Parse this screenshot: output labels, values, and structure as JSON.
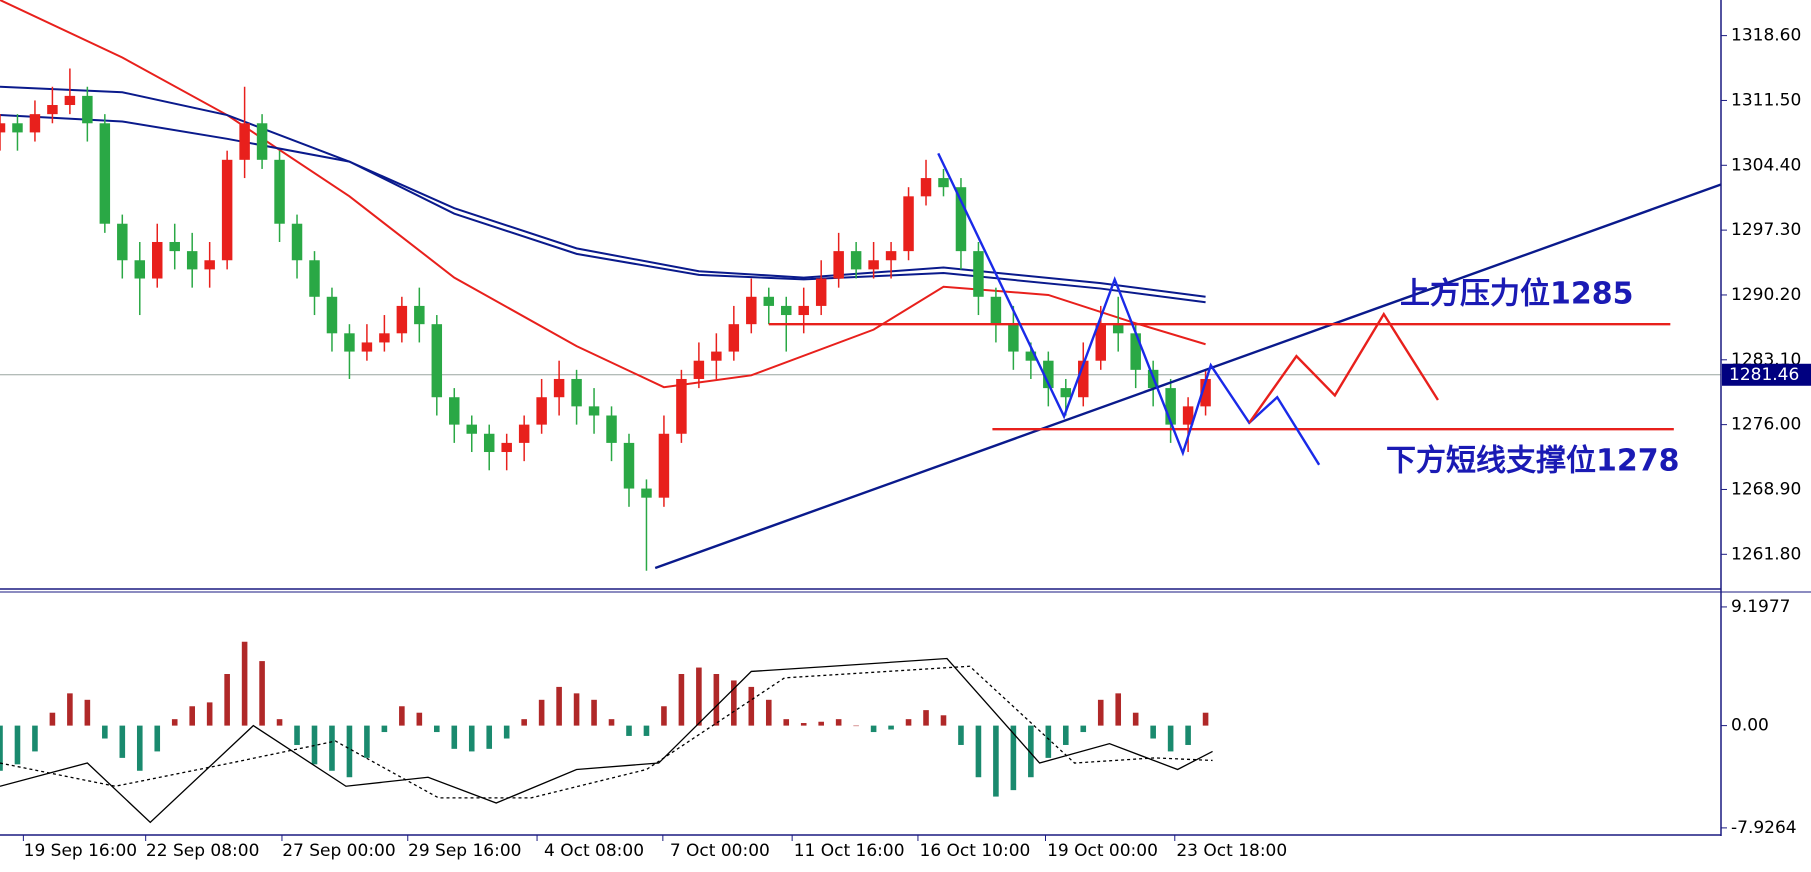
{
  "chart_data": {
    "type": "candlestick",
    "open": [
      1308,
      1309,
      1308,
      1310,
      1311,
      1312,
      1309,
      1298,
      1294,
      1292,
      1296,
      1295,
      1293,
      1294,
      1305,
      1309,
      1305,
      1298,
      1294,
      1290,
      1286,
      1284,
      1285,
      1286,
      1289,
      1287,
      1279,
      1276,
      1275,
      1273,
      1274,
      1276,
      1279,
      1281,
      1278,
      1277,
      1274,
      1269,
      1268,
      1275,
      1281,
      1283,
      1284,
      1287,
      1290,
      1289,
      1288,
      1289,
      1292,
      1295,
      1293,
      1294,
      1295,
      1301,
      1303,
      1302,
      1295,
      1290,
      1287,
      1284,
      1283,
      1280,
      1279,
      1283,
      1287,
      1286,
      1282,
      1280,
      1276,
      1278
    ],
    "high": [
      1310,
      1310,
      1311.5,
      1313,
      1315,
      1313,
      1310,
      1299,
      1296,
      1298,
      1298,
      1297,
      1296,
      1306,
      1313,
      1310,
      1306,
      1299,
      1295,
      1291,
      1287,
      1287,
      1288,
      1290,
      1291,
      1288,
      1280,
      1277,
      1276,
      1275,
      1277,
      1281,
      1283,
      1282,
      1280,
      1278,
      1275,
      1270,
      1277,
      1282,
      1285,
      1286,
      1289,
      1292,
      1291,
      1290,
      1291,
      1294,
      1297,
      1296,
      1296,
      1296,
      1302,
      1305,
      1304,
      1303,
      1296,
      1291,
      1289,
      1285,
      1284,
      1281,
      1285,
      1289,
      1290,
      1287,
      1283,
      1281,
      1279,
      1282
    ],
    "low": [
      1306,
      1306,
      1307,
      1309,
      1310,
      1307,
      1297,
      1292,
      1288,
      1291,
      1293,
      1291,
      1291,
      1293,
      1303,
      1304,
      1296,
      1292,
      1288,
      1284,
      1281,
      1283,
      1284,
      1285,
      1285,
      1277,
      1274,
      1273,
      1271,
      1271,
      1272,
      1275,
      1277,
      1276,
      1275,
      1272,
      1267,
      1260,
      1267,
      1274,
      1280,
      1281,
      1283,
      1286,
      1287,
      1284,
      1286,
      1288,
      1291,
      1292,
      1292,
      1292,
      1294,
      1300,
      1301,
      1293,
      1288,
      1285,
      1282,
      1281,
      1278,
      1277,
      1278,
      1282,
      1284,
      1280,
      1278,
      1274,
      1273,
      1277
    ],
    "close": [
      1309,
      1308,
      1310,
      1311,
      1312,
      1309,
      1298,
      1294,
      1292,
      1296,
      1295,
      1293,
      1294,
      1305,
      1309,
      1305,
      1298,
      1294,
      1290,
      1286,
      1284,
      1285,
      1286,
      1289,
      1287,
      1279,
      1276,
      1275,
      1273,
      1274,
      1276,
      1279,
      1281,
      1278,
      1277,
      1274,
      1269,
      1268,
      1275,
      1281,
      1283,
      1284,
      1287,
      1290,
      1289,
      1288,
      1289,
      1292,
      1295,
      1293,
      1294,
      1295,
      1301,
      1303,
      1302,
      1295,
      1290,
      1287,
      1284,
      1283,
      1280,
      1279,
      1283,
      1287,
      1286,
      1282,
      1280,
      1276,
      1278,
      1281
    ],
    "up_color": "#e8201c",
    "down_color": "#2aa845",
    "xlim": [
      0,
      98.5
    ],
    "ylim": [
      1258.0,
      1322.5
    ],
    "yticks": [
      {
        "value": 1318.6,
        "label": "1318.60"
      },
      {
        "value": 1311.5,
        "label": "1311.50"
      },
      {
        "value": 1304.4,
        "label": "1304.40"
      },
      {
        "value": 1297.3,
        "label": "1297.30"
      },
      {
        "value": 1290.2,
        "label": "1290.20"
      },
      {
        "value": 1283.1,
        "label": "1283.10"
      },
      {
        "value": 1276,
        "label": "1276.00"
      },
      {
        "value": 1268.9,
        "label": "1268.90"
      },
      {
        "value": 1261.8,
        "label": "1261.80"
      }
    ],
    "xticks": [
      {
        "value": 4.6,
        "label": "19 Sep 16:00"
      },
      {
        "value": 11.6,
        "label": "22 Sep 08:00"
      },
      {
        "value": 19.4,
        "label": "27 Sep 00:00"
      },
      {
        "value": 26.6,
        "label": "29 Sep 16:00"
      },
      {
        "value": 34.0,
        "label": "4 Oct 08:00"
      },
      {
        "value": 41.2,
        "label": "7 Oct 00:00"
      },
      {
        "value": 48.6,
        "label": "11 Oct 16:00"
      },
      {
        "value": 55.8,
        "label": "16 Oct 10:00"
      },
      {
        "value": 63.1,
        "label": "19 Oct 00:00"
      },
      {
        "value": 70.5,
        "label": "23 Oct 18:00"
      }
    ],
    "last_price": 1281.46,
    "last_price_color": "#000080",
    "lines": [
      {
        "color": "#e8201c",
        "x": [
          0,
          7,
          13,
          20,
          26,
          33,
          38,
          43,
          50,
          54,
          60,
          65,
          69
        ],
        "values": [
          1322.5,
          1316.2,
          1309.9,
          1301.0,
          1292.1,
          1284.6,
          1280.1,
          1281.4,
          1286.4,
          1291.1,
          1290.2,
          1287.1,
          1284.8
        ]
      },
      {
        "color": "#0a1a8c",
        "x": [
          0,
          7,
          13,
          20,
          26,
          33,
          40,
          46,
          54,
          63,
          69
        ],
        "values": [
          1313.0,
          1312.4,
          1309.9,
          1304.8,
          1299.7,
          1295.3,
          1292.8,
          1292.1,
          1293.2,
          1291.5,
          1290.0
        ]
      },
      {
        "color": "#0a1a8c",
        "x": [
          0,
          7,
          13,
          20,
          26,
          33,
          40,
          46,
          54,
          63,
          69
        ],
        "values": [
          1309.9,
          1309.2,
          1307.3,
          1304.8,
          1299.1,
          1294.7,
          1292.4,
          1291.9,
          1292.6,
          1290.9,
          1289.4
        ]
      }
    ],
    "drawings": [
      {
        "color": "#0a1a8c",
        "x": [
          37.5,
          98.5
        ],
        "values": [
          1260.3,
          1302.3
        ]
      },
      {
        "color": "#e8201c",
        "x": [
          44,
          95.6
        ],
        "values": [
          1287.0,
          1287.0
        ]
      },
      {
        "color": "#e8201c",
        "x": [
          56.8,
          95.8
        ],
        "values": [
          1275.5,
          1275.5
        ]
      },
      {
        "color": "#1a2ae8",
        "x": [
          53.7,
          60.9,
          63.8,
          67.7,
          69.3,
          71.5,
          73.1,
          75.5
        ],
        "values": [
          1305.7,
          1276.9,
          1291.9,
          1272.9,
          1282.5,
          1276.2,
          1279.0,
          1271.6
        ]
      },
      {
        "color": "#e8201c",
        "x": [
          71.5,
          74.2,
          76.4,
          79.2,
          82.3
        ],
        "values": [
          1276.2,
          1283.5,
          1279.2,
          1288.1,
          1278.7
        ]
      }
    ],
    "annotations": [
      "上方压力位1285",
      "下方短线支撑位1278"
    ],
    "macd": {
      "ylim": [
        -8.4,
        10.2
      ],
      "yticks": [
        9.1977,
        {
          "value": 0,
          "label": "0.00"
        },
        -7.9264
      ],
      "pos_color": "#b02828",
      "neg_color": "#1a8a6e",
      "histogram": [
        -3.5,
        -3,
        -2,
        1,
        2.5,
        2,
        -1,
        -2.5,
        -3.5,
        -2,
        0.5,
        1.5,
        1.8,
        4,
        6.5,
        5,
        0.5,
        -1.5,
        -3,
        -3.5,
        -4,
        -2.5,
        -0.5,
        1.5,
        1,
        -0.5,
        -1.8,
        -2,
        -1.8,
        -1,
        0.5,
        2,
        3,
        2.5,
        2,
        0.5,
        -0.8,
        -0.8,
        1.5,
        4,
        4.5,
        4,
        3.5,
        3,
        2,
        0.5,
        0.2,
        0.3,
        0.5,
        0,
        -0.5,
        -0.3,
        0.5,
        1.2,
        0.8,
        -1.5,
        -4,
        -5.5,
        -5,
        -4,
        -2.5,
        -1.5,
        -0.5,
        2,
        2.5,
        1,
        -1,
        -2,
        -1.5,
        1
      ],
      "lines": [
        {
          "color": "#000000",
          "dashed": false,
          "x": [
            0,
            5,
            8.6,
            14.5,
            19.8,
            24.5,
            28.4,
            33,
            37.7,
            43,
            47.6,
            54.2,
            59.5,
            63.5,
            67.4,
            69.4
          ],
          "values": [
            -4.7,
            -2.9,
            -7.5,
            0,
            -4.7,
            -4.0,
            -6.0,
            -3.4,
            -2.9,
            4.2,
            4.6,
            5.2,
            -2.9,
            -1.4,
            -3.4,
            -2.0
          ]
        },
        {
          "color": "#000000",
          "dashed": true,
          "x": [
            0,
            6.6,
            13.2,
            19.2,
            25.1,
            30.4,
            37,
            44.9,
            55.5,
            61.5,
            66.1,
            69.4
          ],
          "values": [
            -2.9,
            -4.7,
            -2.9,
            -1.2,
            -5.6,
            -5.6,
            -3.4,
            3.7,
            4.6,
            -2.9,
            -2.5,
            -2.7
          ]
        }
      ]
    }
  }
}
